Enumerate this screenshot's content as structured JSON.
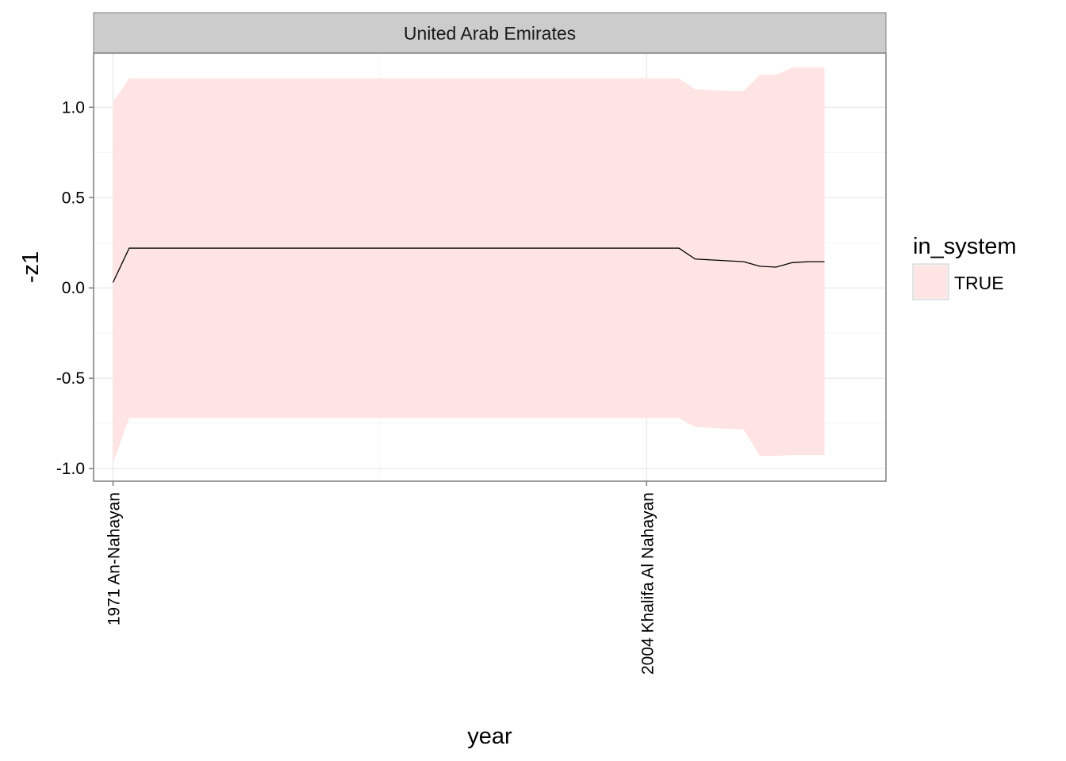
{
  "chart_data": {
    "type": "area",
    "facet_label": "United Arab Emirates",
    "xlabel": "year",
    "ylabel": "-z1",
    "xlim": [
      1969.8,
      2018.8
    ],
    "ylim": [
      -1.07,
      1.3
    ],
    "x_breaks": [
      1971,
      2004
    ],
    "x_tick_labels": [
      "1971 An-Nahayan",
      "2004 Khalifa Al Nahayan"
    ],
    "y_breaks": [
      -1.0,
      -0.5,
      0.0,
      0.5,
      1.0
    ],
    "y_tick_labels": [
      "-1.0",
      "-0.5",
      "0.0",
      "0.5",
      "1.0"
    ],
    "grid": true,
    "legend": {
      "title": "in_system",
      "placement": "right",
      "entries": [
        {
          "label": "TRUE",
          "color": "#ffe4e4"
        }
      ]
    },
    "x": [
      1971,
      1972,
      1973,
      2002,
      2003,
      2004,
      2005,
      2006,
      2007,
      2008,
      2009,
      2010,
      2011,
      2012,
      2013,
      2014,
      2015
    ],
    "series": [
      {
        "line_color": "#000000",
        "ribbon_color": "#ffe4e4",
        "values": [
          0.03,
          0.22,
          0.22,
          0.22,
          0.22,
          0.22,
          0.22,
          0.22,
          0.16,
          0.155,
          0.15,
          0.145,
          0.12,
          0.115,
          0.14,
          0.145,
          0.145
        ],
        "upper": [
          1.03,
          1.16,
          1.16,
          1.16,
          1.16,
          1.16,
          1.16,
          1.16,
          1.1,
          1.095,
          1.09,
          1.09,
          1.18,
          1.18,
          1.22,
          1.22,
          1.22
        ],
        "lower": [
          -0.97,
          -0.72,
          -0.72,
          -0.72,
          -0.72,
          -0.72,
          -0.72,
          -0.72,
          -0.77,
          -0.775,
          -0.78,
          -0.785,
          -0.93,
          -0.93,
          -0.925,
          -0.925,
          -0.925
        ]
      }
    ]
  }
}
